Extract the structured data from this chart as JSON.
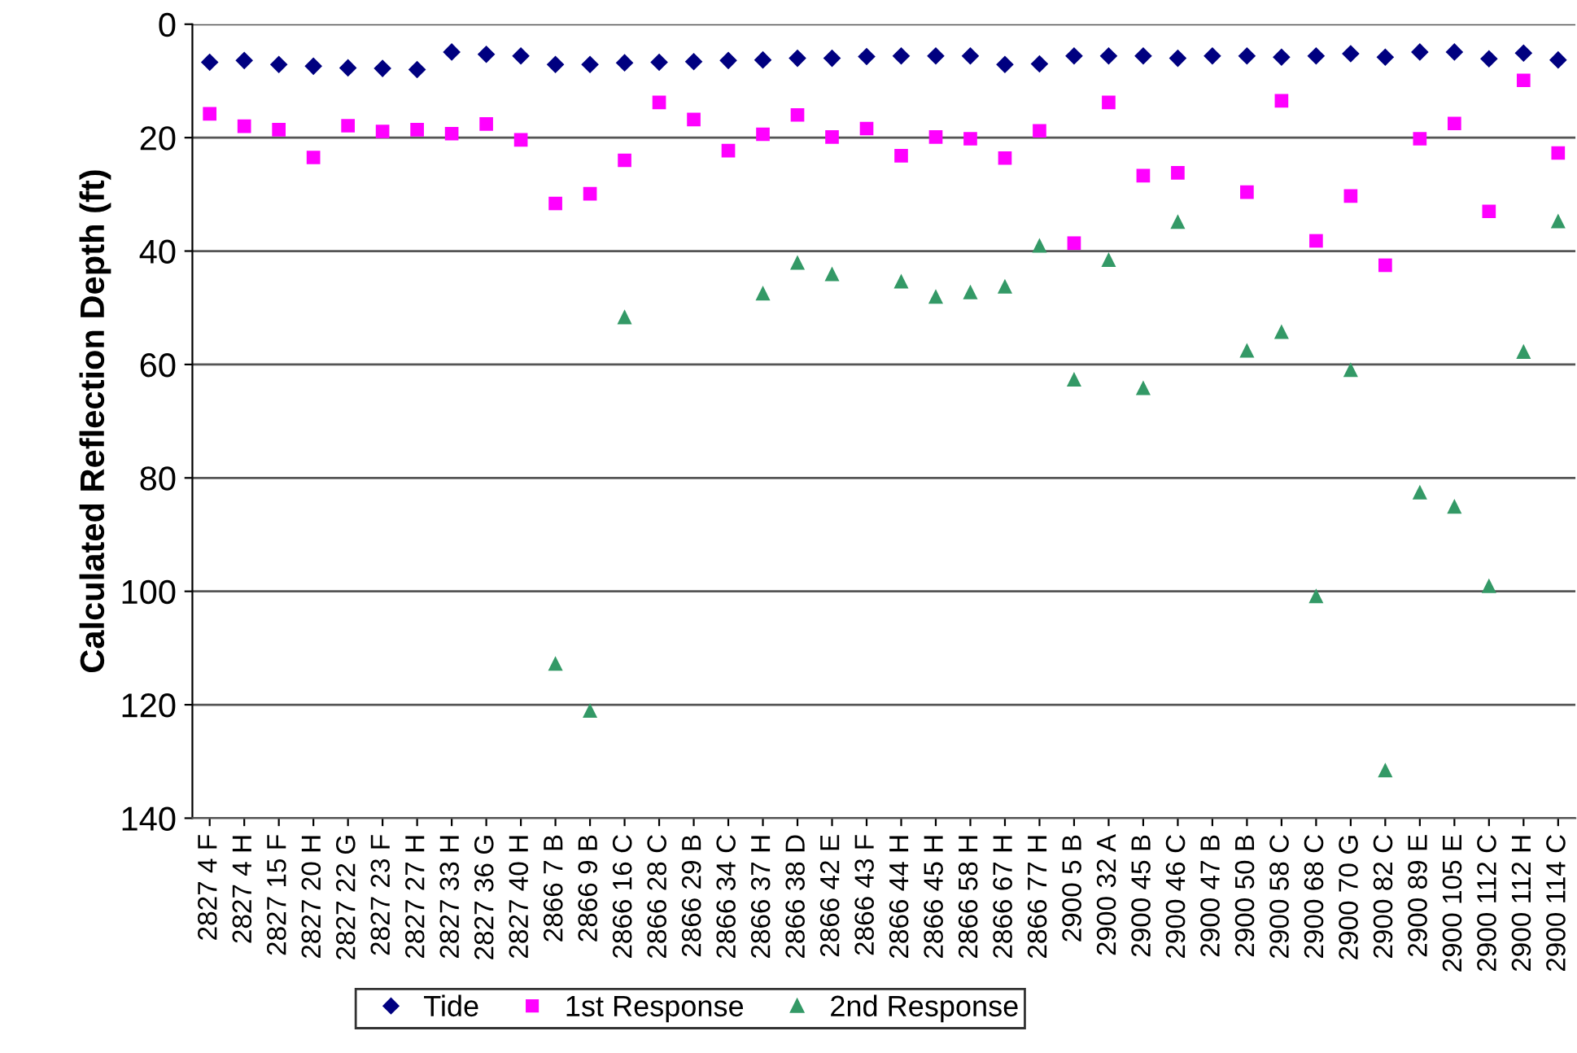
{
  "chart_data": {
    "type": "scatter",
    "ylabel": "Calculated Reflection Depth (ft)",
    "categories": [
      "2827 4 F",
      "2827 4 H",
      "2827 15 F",
      "2827 20 H",
      "2827 22 G",
      "2827 23 F",
      "2827 27 H",
      "2827 33 H",
      "2827 36 G",
      "2827 40 H",
      "2866 7 B",
      "2866 9 B",
      "2866 16 C",
      "2866 28 C",
      "2866 29 B",
      "2866 34 C",
      "2866 37 H",
      "2866 38 D",
      "2866 42 E",
      "2866 43 F",
      "2866 44 H",
      "2866 45 H",
      "2866 58 H",
      "2866 67 H",
      "2866 77 H",
      "2900 5 B",
      "2900 32 A",
      "2900 45 B",
      "2900 46 C",
      "2900 47 B",
      "2900 50 B",
      "2900 58 C",
      "2900 68 C",
      "2900 70 G",
      "2900 82 C",
      "2900 89 E",
      "2900 105 E",
      "2900 112 C",
      "2900 112 H",
      "2900 114 C"
    ],
    "series": [
      {
        "name": "Tide",
        "color": "#000080",
        "marker": "diamond",
        "values": [
          6.7,
          6.4,
          7.1,
          7.4,
          7.7,
          7.8,
          8.0,
          4.9,
          5.3,
          5.6,
          7.1,
          7.1,
          6.8,
          6.7,
          6.6,
          6.4,
          6.3,
          6.0,
          6.0,
          5.7,
          5.6,
          5.6,
          5.6,
          7.1,
          7.0,
          5.6,
          5.6,
          5.6,
          6.0,
          5.6,
          5.6,
          5.8,
          5.6,
          5.2,
          5.8,
          4.9,
          4.9,
          6.1,
          5.1,
          6.3
        ]
      },
      {
        "name": "1st Response",
        "color": "#ff00ff",
        "marker": "square",
        "values": [
          15.8,
          18.0,
          18.6,
          23.5,
          17.9,
          18.9,
          18.6,
          19.3,
          17.6,
          20.4,
          31.6,
          29.9,
          24.0,
          13.8,
          16.8,
          22.3,
          19.4,
          16.0,
          19.9,
          18.4,
          23.2,
          19.9,
          20.2,
          23.6,
          18.8,
          38.6,
          13.8,
          26.7,
          26.2,
          null,
          29.6,
          13.5,
          38.2,
          30.3,
          42.5,
          20.2,
          17.5,
          33.0,
          9.9,
          22.7
        ]
      },
      {
        "name": "2nd Response",
        "color": "#339966",
        "marker": "triangle",
        "values": [
          null,
          null,
          null,
          null,
          null,
          null,
          null,
          null,
          null,
          null,
          112.7,
          121.0,
          51.6,
          null,
          null,
          null,
          47.4,
          42.0,
          44.0,
          null,
          45.3,
          48.0,
          47.2,
          46.2,
          39.0,
          62.6,
          41.5,
          64.1,
          34.8,
          null,
          57.5,
          54.2,
          100.8,
          60.9,
          131.5,
          82.5,
          85.0,
          99.0,
          57.7,
          34.7
        ]
      }
    ],
    "ylim": [
      140,
      0
    ],
    "yticks": [
      0,
      20,
      40,
      60,
      80,
      100,
      120,
      140
    ],
    "grid": "y",
    "legend": "bottom"
  }
}
